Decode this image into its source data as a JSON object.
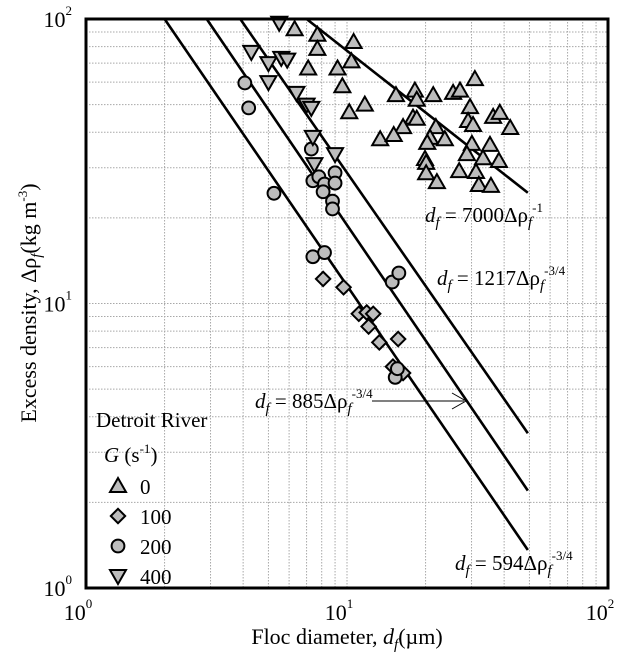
{
  "chart_data": {
    "type": "scatter",
    "xscale": "log",
    "yscale": "log",
    "xlim": [
      1,
      100
    ],
    "ylim": [
      1,
      100
    ],
    "grid": true,
    "xlabel": {
      "text": "Floc diameter, ",
      "var": "d",
      "sub": "f",
      "unit": "(µm)"
    },
    "ylabel": {
      "text": "Excess density, Δρ",
      "sub": "f",
      "unit": "(kg m",
      "sup": "-3",
      "close": ")"
    },
    "xticks": [
      {
        "value": 1,
        "base": "10",
        "exp": "0"
      },
      {
        "value": 10,
        "base": "10",
        "exp": "1"
      },
      {
        "value": 100,
        "base": "10",
        "exp": "2"
      }
    ],
    "yticks": [
      {
        "value": 1,
        "base": "10",
        "exp": "0"
      },
      {
        "value": 10,
        "base": "10",
        "exp": "1"
      },
      {
        "value": 100,
        "base": "10",
        "exp": "2"
      }
    ],
    "legend": {
      "title": "Detroit River",
      "subtitle": {
        "var": "G",
        "unit": " (s",
        "sup": "-1",
        "close": ")"
      },
      "placement": "bottom-left"
    },
    "series": [
      {
        "name": "0",
        "marker": "triangle-up",
        "points": [
          [
            6.3,
            92
          ],
          [
            7.7,
            88
          ],
          [
            7.7,
            78.5
          ],
          [
            10.6,
            83
          ],
          [
            10.4,
            71
          ],
          [
            7.1,
            67
          ],
          [
            9.2,
            67
          ],
          [
            9.6,
            58
          ],
          [
            11.7,
            50
          ],
          [
            10.2,
            47
          ],
          [
            15.4,
            54
          ],
          [
            18.2,
            56
          ],
          [
            18.5,
            52
          ],
          [
            21.4,
            54
          ],
          [
            25.5,
            55
          ],
          [
            27.1,
            56
          ],
          [
            30.9,
            61.5
          ],
          [
            29.6,
            49
          ],
          [
            17.9,
            45
          ],
          [
            18.5,
            44.6
          ],
          [
            16.4,
            41.7
          ],
          [
            21.9,
            41.7
          ],
          [
            29.1,
            43.8
          ],
          [
            30.4,
            42.4
          ],
          [
            36.3,
            45.3
          ],
          [
            38.5,
            46.8
          ],
          [
            42.2,
            41.4
          ],
          [
            13.4,
            37.8
          ],
          [
            15.1,
            39.1
          ],
          [
            20.8,
            38.2
          ],
          [
            20.3,
            36.7
          ],
          [
            23.7,
            37.8
          ],
          [
            30.1,
            36.4
          ],
          [
            35.3,
            36.1
          ],
          [
            28.8,
            33.5
          ],
          [
            33.2,
            32.4
          ],
          [
            38.2,
            31.7
          ],
          [
            19.9,
            32.2
          ],
          [
            20.1,
            31.2
          ],
          [
            26.9,
            29.2
          ],
          [
            31.2,
            29.0
          ],
          [
            20.1,
            28.7
          ],
          [
            22.1,
            26.7
          ],
          [
            32.0,
            26.1
          ],
          [
            35.6,
            25.9
          ]
        ]
      },
      {
        "name": "100",
        "marker": "diamond",
        "points": [
          [
            8.1,
            12.2
          ],
          [
            9.7,
            11.4
          ],
          [
            11.1,
            9.2
          ],
          [
            11.9,
            9.3
          ],
          [
            12.6,
            9.2
          ],
          [
            12.1,
            8.3
          ],
          [
            13.3,
            7.3
          ],
          [
            15.7,
            7.5
          ],
          [
            15.0,
            6.0
          ],
          [
            16.4,
            5.7
          ]
        ]
      },
      {
        "name": "200",
        "marker": "circle",
        "points": [
          [
            4.06,
            59.6
          ],
          [
            4.2,
            48.7
          ],
          [
            7.3,
            34.9
          ],
          [
            7.4,
            27
          ],
          [
            7.8,
            27.9
          ],
          [
            8.2,
            26.3
          ],
          [
            8.1,
            24.7
          ],
          [
            9.0,
            28.8
          ],
          [
            9.0,
            26.5
          ],
          [
            8.8,
            22.9
          ],
          [
            8.8,
            21.5
          ],
          [
            5.25,
            24.4
          ],
          [
            7.4,
            14.6
          ],
          [
            8.2,
            15.1
          ],
          [
            14.9,
            11.9
          ],
          [
            15.8,
            12.8
          ],
          [
            15.3,
            5.5
          ],
          [
            15.6,
            5.9
          ]
        ]
      },
      {
        "name": "400",
        "marker": "triangle-down",
        "points": [
          [
            5.5,
            97
          ],
          [
            4.3,
            76.6
          ],
          [
            5.0,
            70
          ],
          [
            5.6,
            73
          ],
          [
            5.9,
            72
          ],
          [
            5.0,
            60
          ],
          [
            6.4,
            55
          ],
          [
            7.0,
            50
          ],
          [
            7.3,
            48.7
          ],
          [
            7.4,
            38.5
          ],
          [
            9.0,
            33.5
          ],
          [
            7.5,
            30.9
          ]
        ]
      }
    ],
    "fit_lines": [
      {
        "coef": "594",
        "exp": "-3/4",
        "from": [
          2.0,
          100
        ],
        "to": [
          49.3,
          1.36
        ]
      },
      {
        "coef": "885",
        "exp": "-3/4",
        "from": [
          2.9,
          100
        ],
        "to": [
          49.3,
          2.2
        ]
      },
      {
        "coef": "1217",
        "exp": "-3/4",
        "from": [
          3.9,
          100
        ],
        "to": [
          49.3,
          3.5
        ]
      },
      {
        "coef": "7000",
        "exp": "-1",
        "from": [
          7.0,
          100
        ],
        "to": [
          49.3,
          24.5
        ]
      }
    ],
    "annotations": {
      "var": "d",
      "sub": "f",
      "eq": " = ",
      "rho": "Δρ"
    }
  }
}
